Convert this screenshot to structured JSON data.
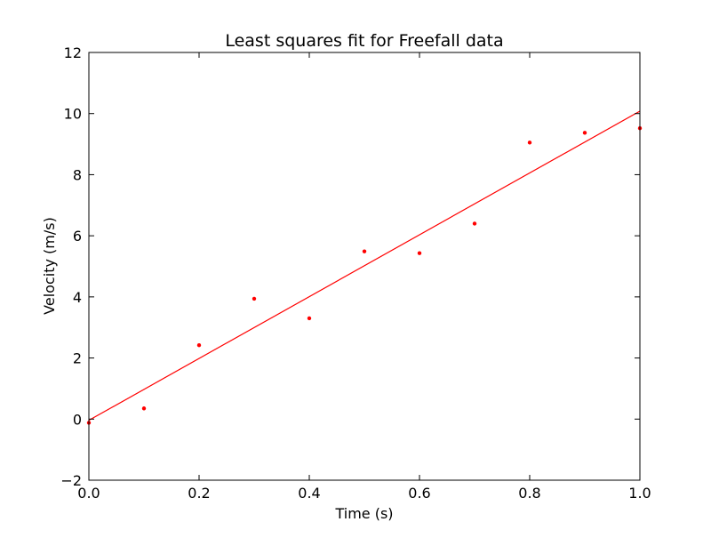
{
  "chart_data": {
    "type": "scatter",
    "title": "Least squares fit for Freefall data",
    "xlabel": "Time (s)",
    "ylabel": "Velocity (m/s)",
    "xlim": [
      0.0,
      1.0
    ],
    "ylim": [
      -2,
      12
    ],
    "x_ticks": [
      "0.0",
      "0.2",
      "0.4",
      "0.6",
      "0.8",
      "1.0"
    ],
    "y_ticks": [
      "−2",
      "0",
      "2",
      "4",
      "6",
      "8",
      "10",
      "12"
    ],
    "grid": false,
    "legend": "none",
    "series": [
      {
        "kind": "points",
        "color": "#ff0000",
        "x": [
          0.0,
          0.1,
          0.2,
          0.3,
          0.4,
          0.5,
          0.6,
          0.7,
          0.8,
          0.9,
          1.0
        ],
        "y": [
          -0.12,
          0.35,
          2.42,
          3.94,
          3.3,
          5.49,
          5.43,
          6.4,
          9.05,
          9.37,
          9.52
        ]
      },
      {
        "kind": "fit-line",
        "color": "#ff0000",
        "x": [
          0.0,
          1.0
        ],
        "y": [
          -0.04,
          10.08
        ]
      }
    ]
  }
}
